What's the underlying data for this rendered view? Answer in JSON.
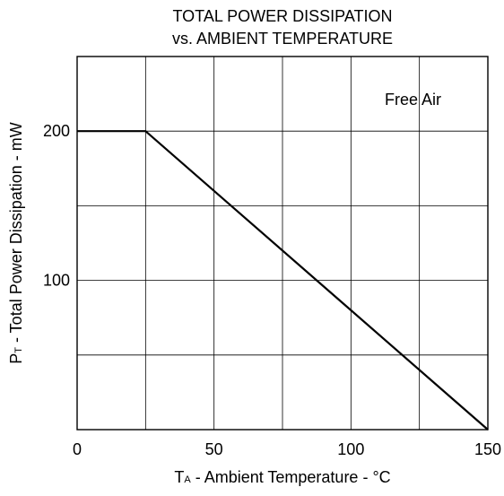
{
  "chart_data": {
    "type": "line",
    "title_lines": [
      "TOTAL POWER DISSIPATION",
      "vs. AMBIENT TEMPERATURE"
    ],
    "xlabel": {
      "main": "T",
      "subscript": "A",
      "rest": " - Ambient Temperature - °C"
    },
    "ylabel": {
      "main": "P",
      "subscript": "T",
      "rest": " - Total Power Dissipation - mW"
    },
    "xlim": [
      0,
      150
    ],
    "ylim": [
      0,
      250
    ],
    "x_grid": [
      25,
      50,
      75,
      100,
      125
    ],
    "y_grid": [
      50,
      100,
      150,
      200
    ],
    "x_ticks": [
      {
        "value": 0,
        "label": "0"
      },
      {
        "value": 50,
        "label": "50"
      },
      {
        "value": 100,
        "label": "100"
      },
      {
        "value": 150,
        "label": "150"
      }
    ],
    "y_ticks": [
      {
        "value": 100,
        "label": "100"
      },
      {
        "value": 200,
        "label": "200"
      }
    ],
    "annotation": "Free Air",
    "grid": true,
    "series": [
      {
        "x": [
          0,
          25,
          150
        ],
        "y": [
          200,
          200,
          0
        ]
      }
    ]
  }
}
